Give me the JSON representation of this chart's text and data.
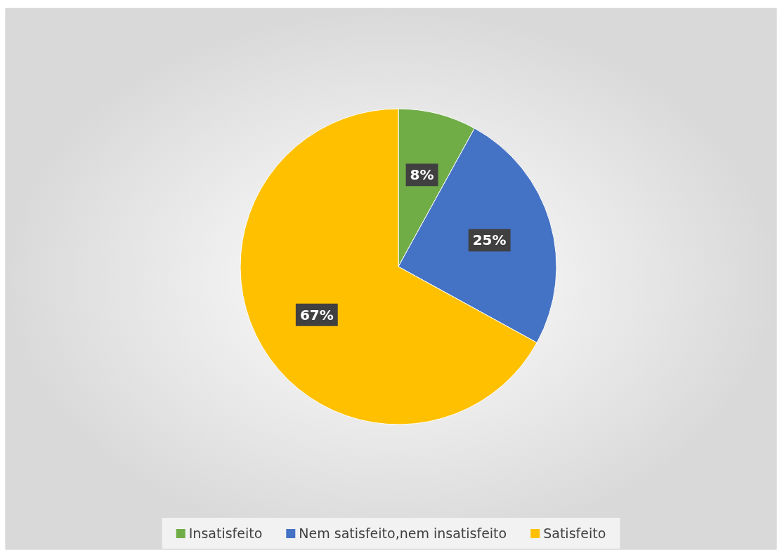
{
  "chart_data": {
    "type": "pie",
    "categories": [
      "Insatisfeito",
      "Nem satisfeito,nem insatisfeito",
      "Satisfeito"
    ],
    "values": [
      8,
      25,
      67
    ],
    "colors": [
      "#70ad47",
      "#4472c4",
      "#ffc000"
    ],
    "value_labels": [
      "8%",
      "25%",
      "67%"
    ],
    "legend": "bottom"
  }
}
